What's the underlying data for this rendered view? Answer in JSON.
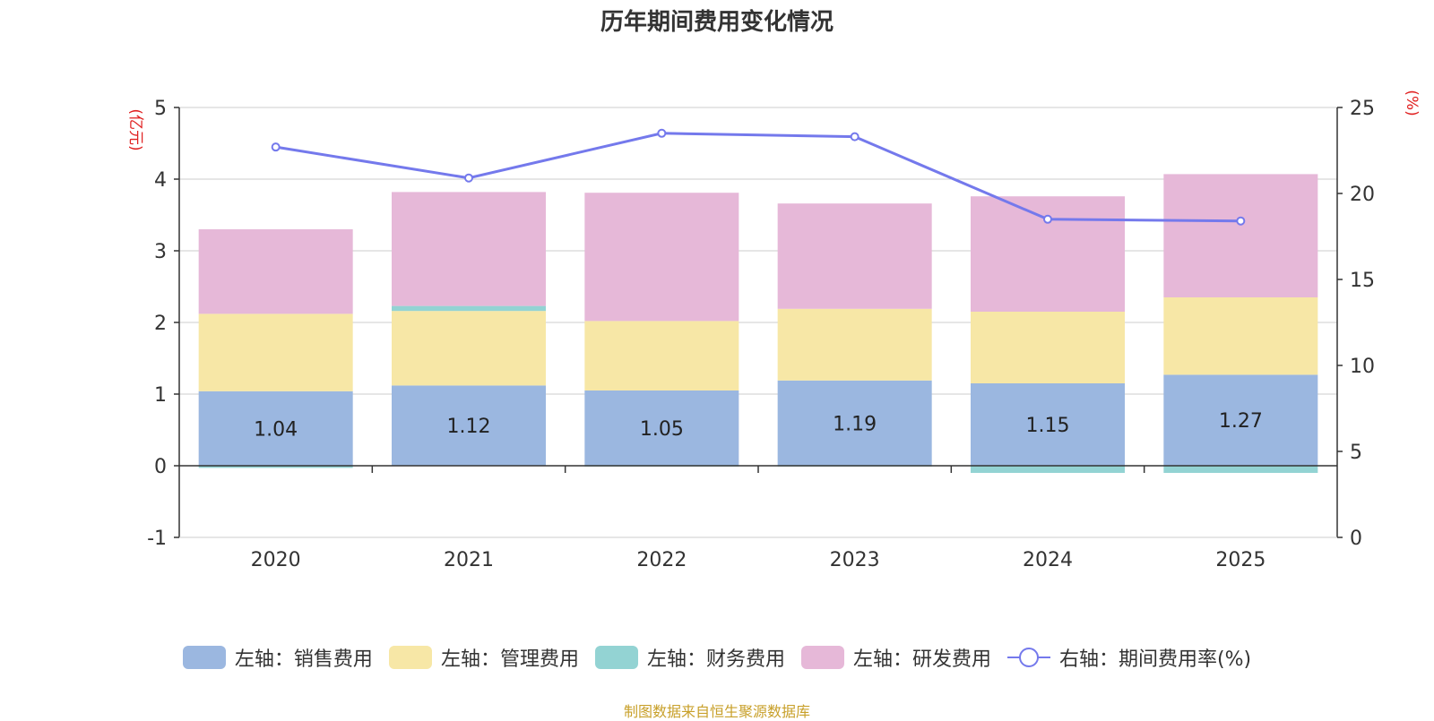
{
  "title": "历年期间费用变化情况",
  "source_note": "制图数据来自恒生聚源数据库",
  "chart_data": {
    "type": "bar",
    "stacked": true,
    "title": "历年期间费用变化情况",
    "categories": [
      "2020",
      "2021",
      "2022",
      "2023",
      "2024",
      "2025"
    ],
    "y_left": {
      "label": "(亿元)",
      "ticks": [
        "5",
        "4",
        "3",
        "2",
        "1",
        "0",
        "-1"
      ],
      "range": [
        -1,
        5
      ]
    },
    "y_right": {
      "label": "(%)",
      "ticks": [
        "25",
        "20",
        "15",
        "10",
        "5",
        "0"
      ],
      "range": [
        0,
        25
      ]
    },
    "series": [
      {
        "name": "左轴：销售费用",
        "axis": "left",
        "color": "#9bb7e0",
        "values": [
          1.04,
          1.12,
          1.05,
          1.19,
          1.15,
          1.27
        ],
        "labels": [
          "1.04",
          "1.12",
          "1.05",
          "1.19",
          "1.15",
          "1.27"
        ]
      },
      {
        "name": "左轴：管理费用",
        "axis": "left",
        "color": "#f7e7a6",
        "values": [
          1.08,
          1.04,
          0.97,
          1.0,
          1.0,
          1.08
        ]
      },
      {
        "name": "左轴：财务费用",
        "axis": "left",
        "color": "#93d3d3",
        "values": [
          -0.03,
          0.07,
          -0.01,
          -0.01,
          -0.1,
          -0.1
        ]
      },
      {
        "name": "左轴：研发费用",
        "axis": "left",
        "color": "#e6b8d8",
        "values": [
          1.18,
          1.59,
          1.79,
          1.47,
          1.61,
          1.72
        ]
      },
      {
        "name": "右轴：期间费用率(%)",
        "axis": "right",
        "type": "line",
        "color": "#7479ec",
        "values": [
          22.7,
          20.9,
          23.5,
          23.3,
          18.5,
          18.4
        ]
      }
    ],
    "legend_position": "bottom",
    "grid": true
  }
}
